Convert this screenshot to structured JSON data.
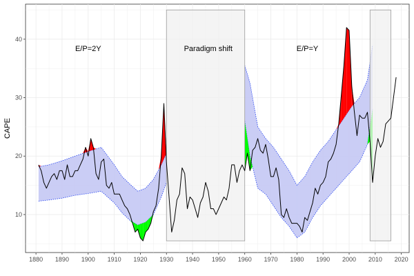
{
  "chart_data": {
    "type": "line",
    "title": "",
    "xlabel": "",
    "ylabel": "CAPE",
    "xlim": [
      1876,
      2023
    ],
    "ylim": [
      3.5,
      46
    ],
    "x_ticks": [
      1880,
      1890,
      1900,
      1910,
      1920,
      1930,
      1940,
      1950,
      1960,
      1970,
      1980,
      1990,
      2000,
      2010,
      2020
    ],
    "y_ticks": [
      10,
      20,
      30,
      40
    ],
    "grid": true,
    "legend": "none",
    "colors": {
      "band_fill": "#c4c8f4",
      "band_edge": "#1f3ff0",
      "line": "#000000",
      "above_band": "#ff0000",
      "below_band": "#00ff00",
      "shade_fill": "#f0f0f0",
      "shade_edge": "#9a9a9a"
    },
    "shaded_regions": [
      {
        "x": [
          1930,
          1960
        ],
        "y": [
          5.5,
          45
        ]
      },
      {
        "x": [
          2008,
          2016
        ],
        "y": [
          5.5,
          45
        ]
      }
    ],
    "annotations": [
      {
        "text": "E/P=2Y",
        "x": 1900,
        "y": 38
      },
      {
        "text": "Paradigm shift",
        "x": 1946,
        "y": 38
      },
      {
        "text": "E/P=Y",
        "x": 1984,
        "y": 38
      }
    ],
    "cape": {
      "x": [
        1881,
        1882,
        1883,
        1884,
        1885,
        1886,
        1887,
        1888,
        1889,
        1890,
        1891,
        1892,
        1893,
        1894,
        1895,
        1896,
        1897,
        1898,
        1899,
        1900,
        1901,
        1902,
        1903,
        1904,
        1905,
        1906,
        1907,
        1908,
        1909,
        1910,
        1911,
        1912,
        1913,
        1914,
        1915,
        1916,
        1917,
        1918,
        1919,
        1920,
        1921,
        1922,
        1923,
        1924,
        1925,
        1926,
        1927,
        1928,
        1929,
        1930,
        1931,
        1932,
        1933,
        1934,
        1935,
        1936,
        1937,
        1938,
        1939,
        1940,
        1941,
        1942,
        1943,
        1944,
        1945,
        1946,
        1947,
        1948,
        1949,
        1950,
        1951,
        1952,
        1953,
        1954,
        1955,
        1956,
        1957,
        1958,
        1959,
        1960,
        1961,
        1962,
        1963,
        1964,
        1965,
        1966,
        1967,
        1968,
        1969,
        1970,
        1971,
        1972,
        1973,
        1974,
        1975,
        1976,
        1977,
        1978,
        1979,
        1980,
        1981,
        1982,
        1983,
        1984,
        1985,
        1986,
        1987,
        1988,
        1989,
        1990,
        1991,
        1992,
        1993,
        1994,
        1995,
        1996,
        1997,
        1998,
        1999,
        2000,
        2001,
        2002,
        2003,
        2004,
        2005,
        2006,
        2007,
        2008,
        2009,
        2010,
        2011,
        2012,
        2013,
        2014,
        2015,
        2016,
        2017,
        2018
      ],
      "y": [
        18.5,
        17.5,
        15.5,
        14.5,
        15.5,
        16.5,
        17.0,
        16.0,
        17.5,
        17.5,
        16.0,
        18.5,
        16.5,
        16.5,
        17.5,
        17.5,
        18.5,
        19.5,
        21.5,
        20.0,
        23.0,
        21.5,
        17.0,
        16.0,
        19.0,
        19.5,
        15.0,
        14.5,
        15.5,
        13.5,
        13.5,
        13.5,
        12.5,
        11.5,
        11.0,
        10.0,
        8.5,
        7.0,
        7.5,
        6.0,
        5.5,
        7.0,
        7.5,
        8.5,
        10.5,
        11.5,
        14.5,
        20.0,
        29.0,
        19.0,
        13.0,
        7.0,
        9.0,
        12.5,
        13.5,
        18.0,
        17.0,
        11.0,
        13.0,
        12.5,
        11.0,
        9.5,
        12.0,
        13.0,
        15.5,
        14.0,
        11.0,
        11.0,
        10.0,
        11.0,
        12.0,
        13.0,
        12.5,
        14.5,
        18.5,
        18.5,
        15.5,
        17.5,
        18.5,
        17.5,
        20.5,
        17.5,
        21.0,
        21.5,
        23.0,
        21.0,
        20.5,
        22.0,
        19.5,
        16.5,
        16.5,
        18.0,
        16.0,
        10.0,
        9.5,
        11.0,
        9.5,
        8.5,
        8.5,
        8.5,
        8.0,
        7.0,
        9.5,
        9.0,
        10.5,
        12.0,
        14.5,
        13.5,
        15.0,
        15.5,
        16.5,
        19.0,
        19.5,
        20.5,
        22.0,
        25.5,
        30.5,
        35.5,
        42.0,
        41.5,
        32.0,
        27.5,
        23.5,
        27.0,
        26.5,
        26.5,
        27.5,
        22.5,
        15.5,
        20.0,
        23.0,
        21.5,
        22.5,
        25.5,
        26.0,
        26.5,
        30.0,
        33.5
      ]
    },
    "band": {
      "x": [
        1881,
        1885,
        1890,
        1895,
        1900,
        1905,
        1910,
        1913,
        1916,
        1919,
        1922,
        1925,
        1928,
        1930
      ],
      "lower": [
        12.3,
        12.5,
        12.8,
        13.3,
        13.6,
        14.0,
        12.0,
        10.3,
        9.0,
        8.2,
        8.7,
        10.0,
        13.0,
        15.5
      ],
      "upper": [
        18.2,
        18.5,
        19.2,
        20.0,
        20.8,
        21.5,
        18.5,
        16.5,
        15.2,
        14.0,
        14.5,
        16.0,
        18.5,
        20.5
      ]
    },
    "band2": {
      "x": [
        1960,
        1962,
        1965,
        1968,
        1971,
        1974,
        1977,
        1980,
        1983,
        1986,
        1989,
        1992,
        1995,
        1998,
        2001,
        2004,
        2007,
        2009
      ],
      "lower": [
        26.0,
        20.0,
        14.5,
        13.5,
        11.5,
        9.5,
        8.0,
        6.0,
        7.0,
        9.5,
        11.5,
        13.0,
        14.5,
        16.0,
        17.5,
        19.0,
        22.0,
        28.0
      ],
      "upper": [
        35.5,
        32.5,
        25.0,
        23.0,
        21.5,
        19.5,
        17.5,
        15.0,
        16.5,
        19.0,
        21.0,
        22.5,
        24.5,
        26.5,
        28.5,
        30.0,
        33.0,
        39.0
      ]
    }
  }
}
